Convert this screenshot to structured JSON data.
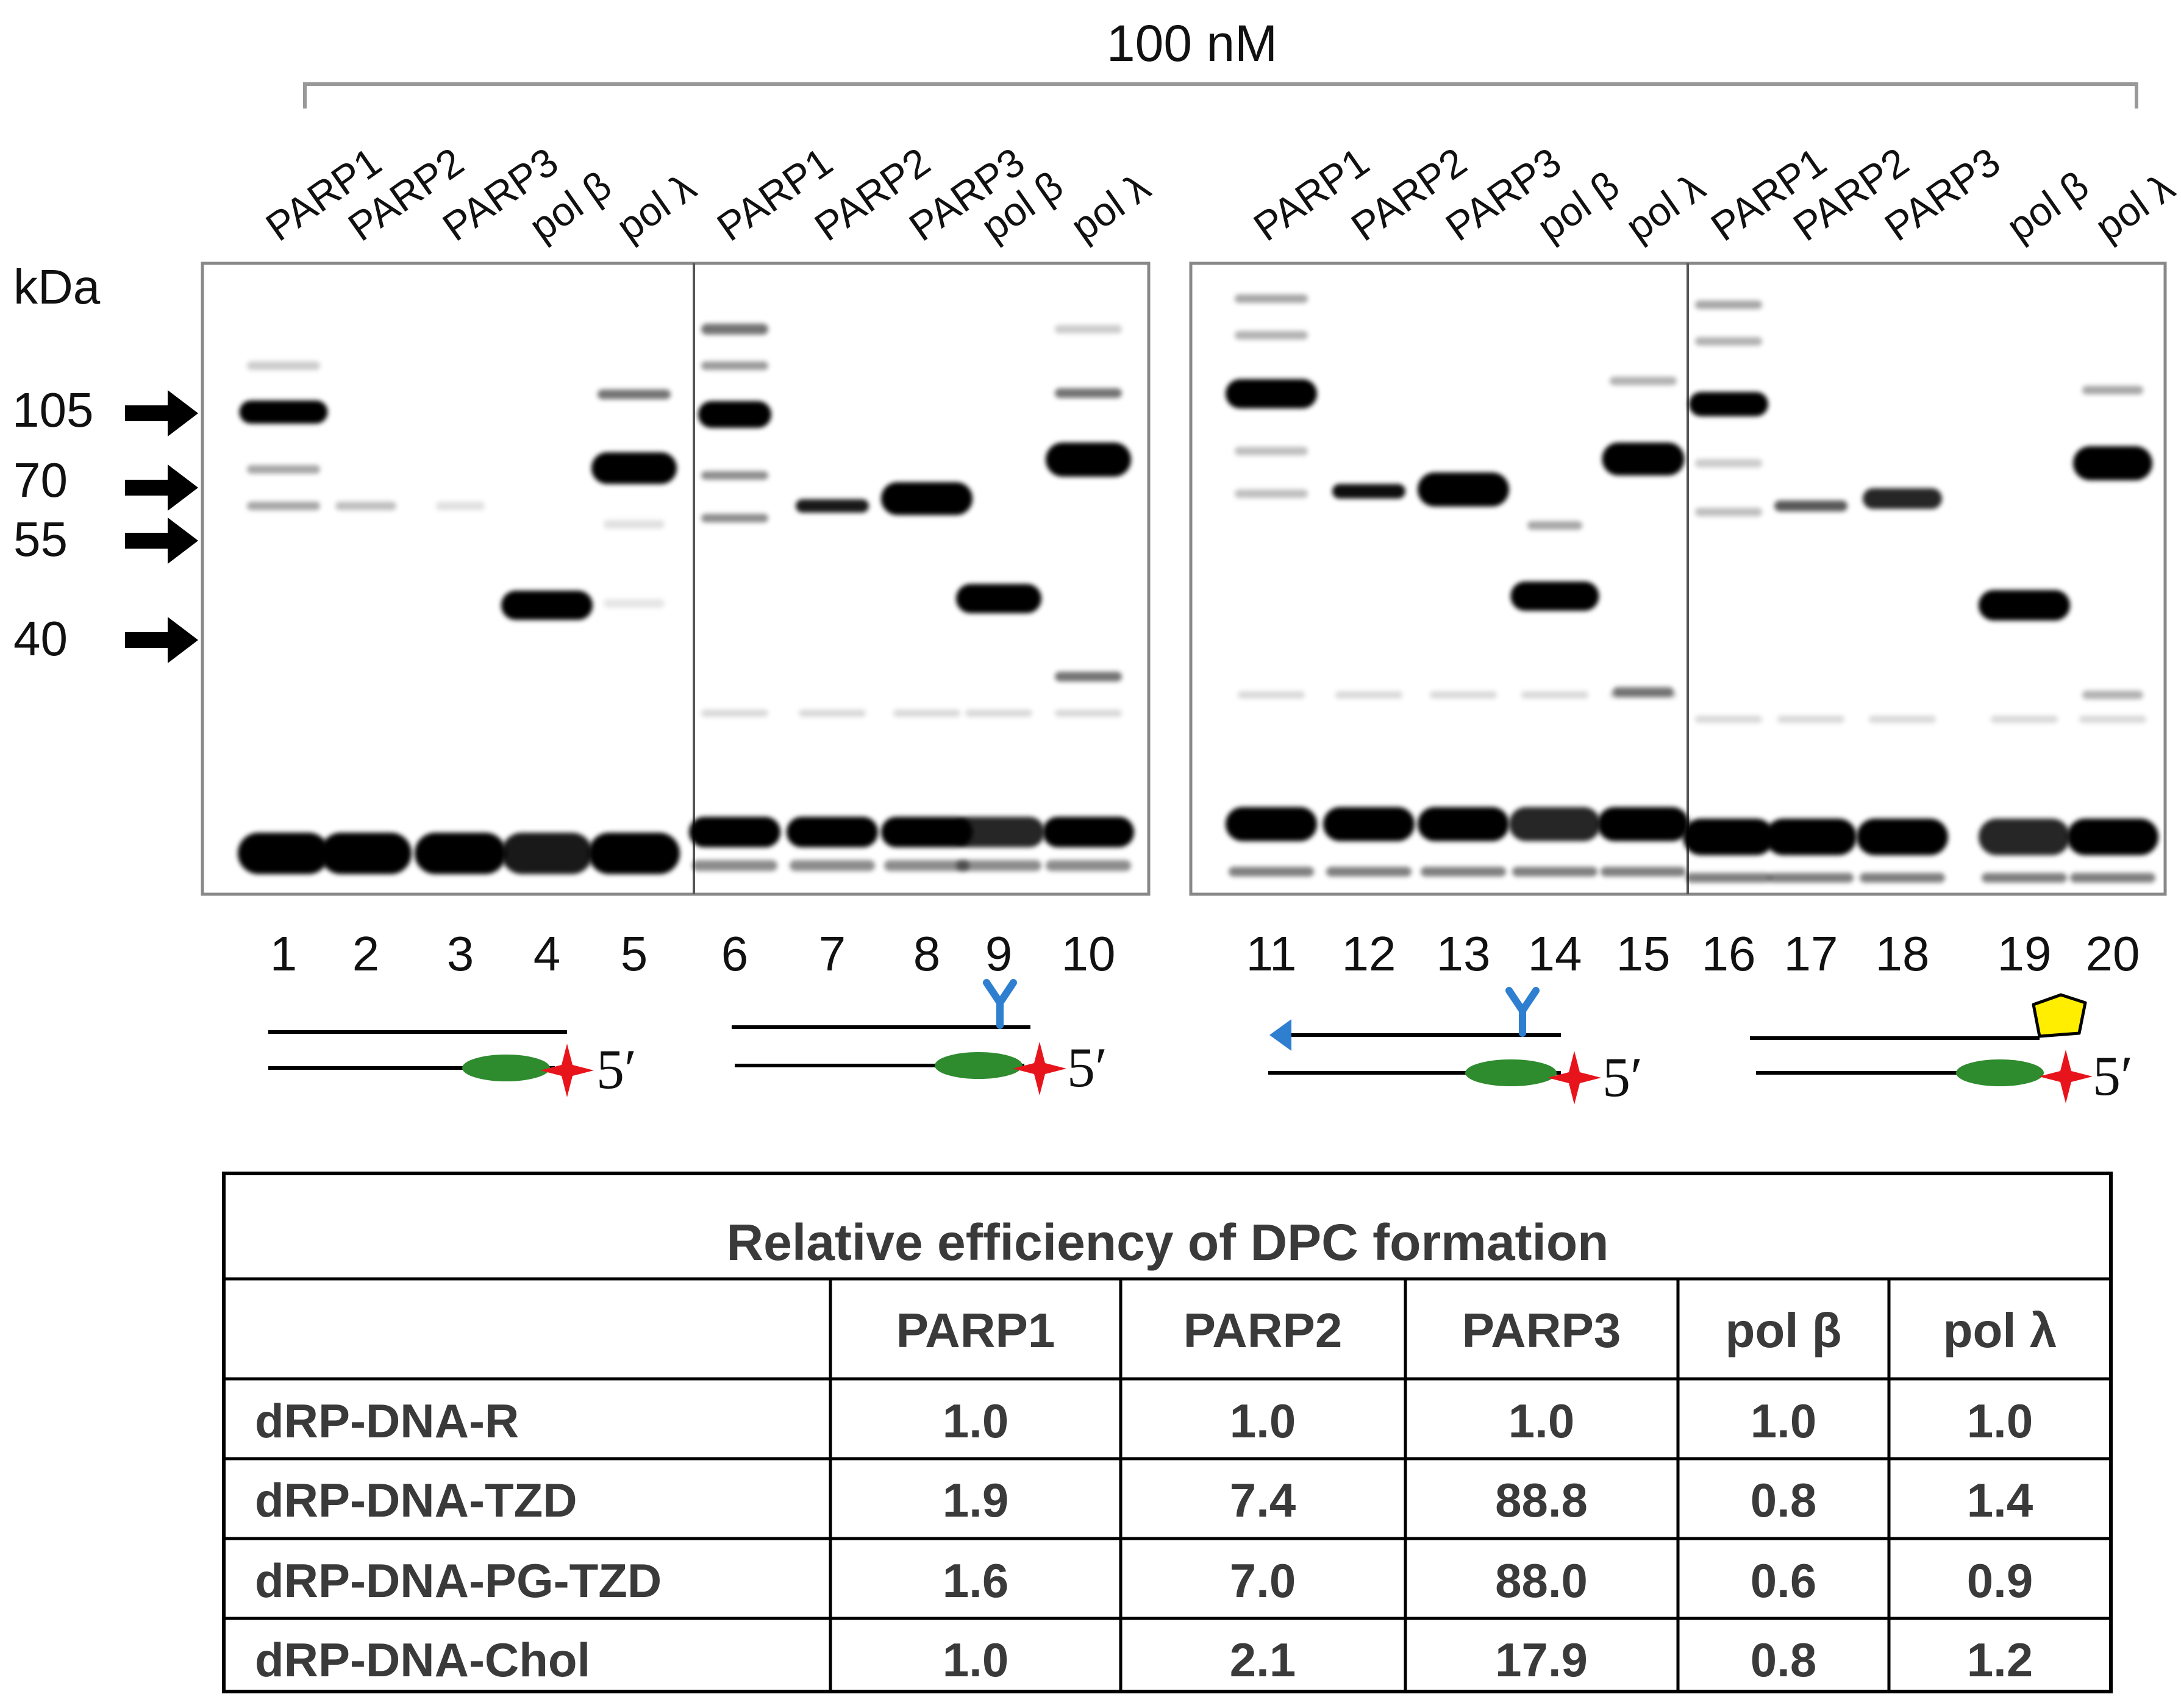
{
  "concentration_label": "100 nM",
  "kda_label": "kDa",
  "markers": [
    "105",
    "70",
    "55",
    "40"
  ],
  "lane_labels": [
    "PARP1",
    "PARP2",
    "PARP3",
    "pol β",
    "pol λ"
  ],
  "lane_numbers": [
    "1",
    "2",
    "3",
    "4",
    "5",
    "6",
    "7",
    "8",
    "9",
    "10",
    "11",
    "12",
    "13",
    "14",
    "15",
    "16",
    "17",
    "18",
    "19",
    "20"
  ],
  "prime_label": "5′",
  "table": {
    "title": "Relative efficiency of DPC formation",
    "columns": [
      "PARP1",
      "PARP2",
      "PARP3",
      "pol β",
      "pol λ"
    ],
    "rows": [
      {
        "name": "dRP-DNA-R",
        "values": [
          "1.0",
          "1.0",
          "1.0",
          "1.0",
          "1.0"
        ]
      },
      {
        "name": "dRP-DNA-TZD",
        "values": [
          "1.9",
          "7.4",
          "88.8",
          "0.8",
          "1.4"
        ]
      },
      {
        "name": "dRP-DNA-PG-TZD",
        "values": [
          "1.6",
          "7.0",
          "88.0",
          "0.6",
          "0.9"
        ]
      },
      {
        "name": "dRP-DNA-Chol",
        "values": [
          "1.0",
          "2.1",
          "17.9",
          "0.8",
          "1.2"
        ]
      }
    ]
  },
  "colors": {
    "star": "#e8141c",
    "oval": "#2e8b2e",
    "y_mark": "#2f7fd0",
    "arrowhead": "#2f7fd0",
    "hexagon": "#ffee00"
  }
}
